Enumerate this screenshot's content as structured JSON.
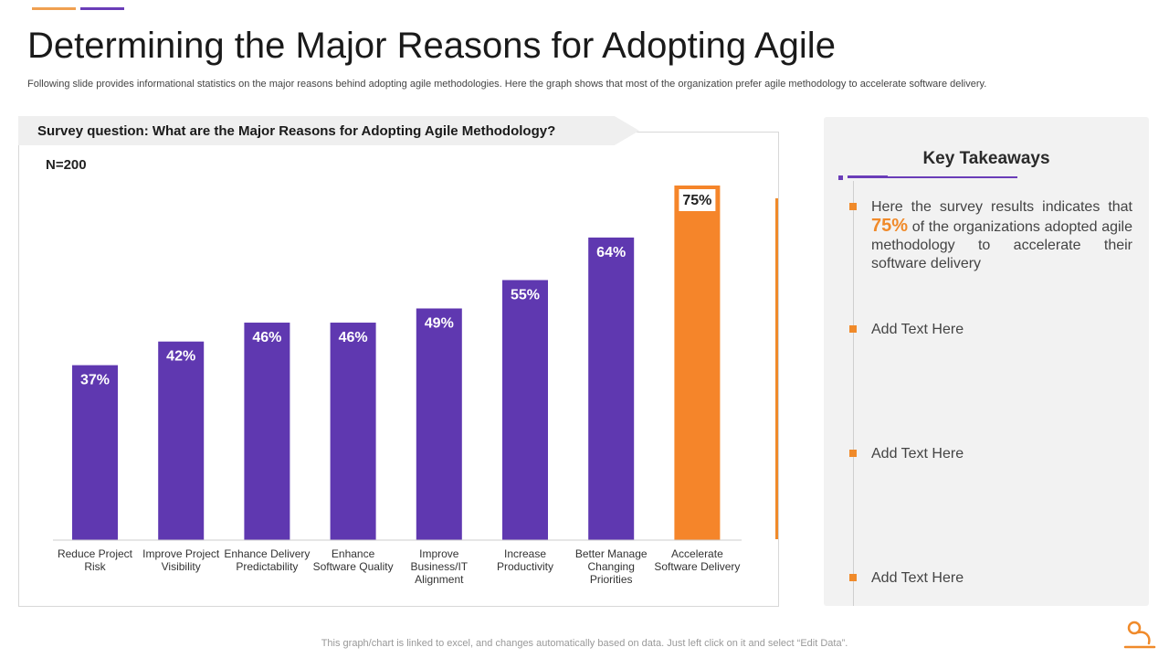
{
  "title": "Determining the Major Reasons for Adopting Agile",
  "subtitle": "Following slide provides informational statistics on the major reasons behind adopting agile methodologies. Here the graph shows that most of the organization prefer agile methodology to accelerate software delivery.",
  "question": "Survey question: What are the Major Reasons for Adopting Agile Methodology?",
  "sample_size": "N=200",
  "chart_data": {
    "type": "bar",
    "title": "Survey question: What are the Major Reasons for Adopting Agile Methodology?",
    "categories": [
      "Reduce Project Risk",
      "Improve Project Visibility",
      "Enhance Delivery Predictability",
      "Enhance Software Quality",
      "Improve Business/IT Alignment",
      "Increase Productivity",
      "Better Manage Changing Priorities",
      "Accelerate Software Delivery"
    ],
    "category_lines": [
      [
        "Reduce Project",
        "Risk"
      ],
      [
        "Improve Project",
        "Visibility"
      ],
      [
        "Enhance Delivery",
        "Predictability"
      ],
      [
        "Enhance",
        "Software Quality"
      ],
      [
        "Improve",
        "Business/IT",
        "Alignment"
      ],
      [
        "Increase",
        "Productivity"
      ],
      [
        "Better Manage",
        "Changing",
        "Priorities"
      ],
      [
        "Accelerate",
        "Software Delivery"
      ]
    ],
    "values": [
      37,
      42,
      46,
      46,
      49,
      55,
      64,
      75
    ],
    "data_labels": [
      "37%",
      "42%",
      "46%",
      "46%",
      "49%",
      "55%",
      "64%",
      "75%"
    ],
    "unit": "%",
    "ylim": [
      0,
      80
    ],
    "grid": false,
    "highlight_index": 7,
    "colors": {
      "bar": "#5f38b0",
      "highlight": "#f5852a",
      "axis": "#cccccc"
    }
  },
  "takeaways": {
    "title": "Key Takeaways",
    "first": {
      "before": "Here the survey results indicates that",
      "highlight": "75%",
      "after": "of the organizations adopted agile methodology to accelerate their software delivery"
    },
    "items": [
      "Add Text Here",
      "Add Text Here",
      "Add Text Here"
    ]
  },
  "footer": "This graph/chart is linked to excel, and changes automatically based on data. Just left click on it and select “Edit Data”."
}
